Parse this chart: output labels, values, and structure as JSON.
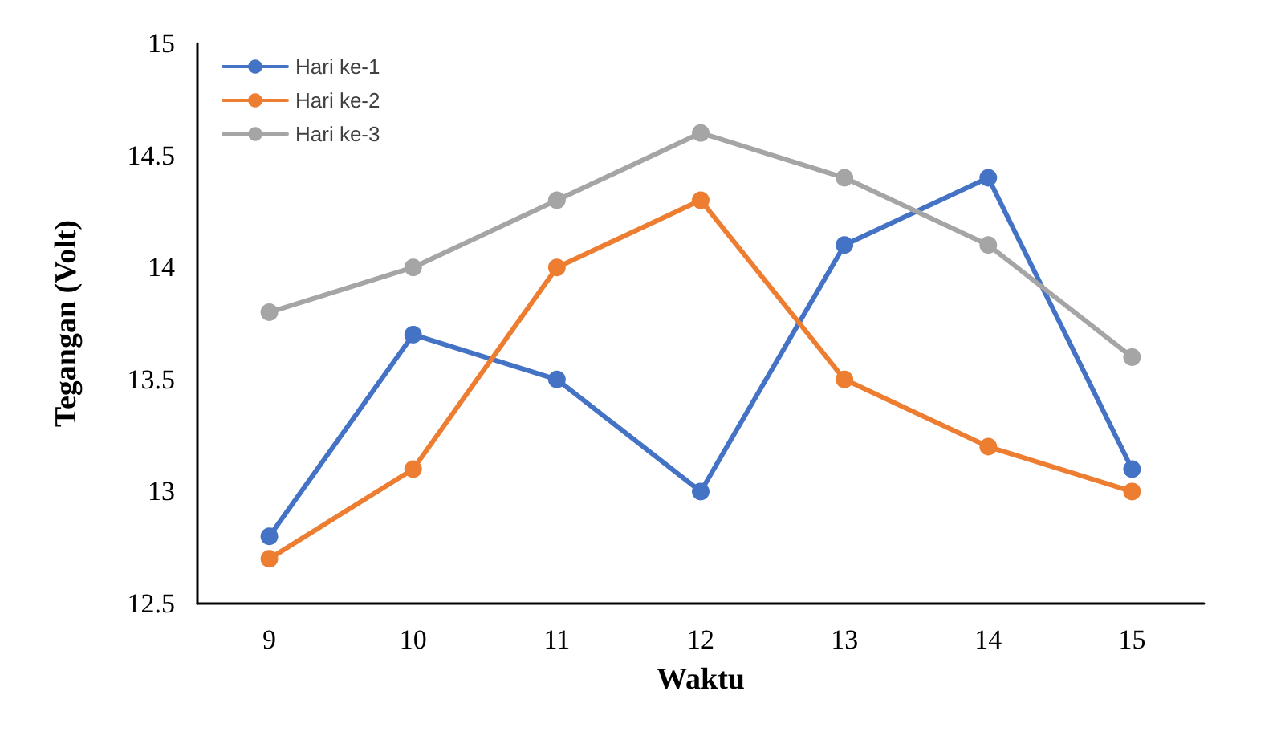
{
  "chart_data": {
    "type": "line",
    "xlabel": "Waktu",
    "ylabel": "Tegangan (Volt)",
    "categories": [
      "9",
      "10",
      "11",
      "12",
      "13",
      "14",
      "15"
    ],
    "series": [
      {
        "name": "Hari ke-1",
        "color": "#4472c4",
        "values": [
          12.8,
          13.7,
          13.5,
          13.0,
          14.1,
          14.4,
          13.1
        ]
      },
      {
        "name": "Hari ke-2",
        "color": "#ed7d31",
        "values": [
          12.7,
          13.1,
          14.0,
          14.3,
          13.5,
          13.2,
          13.0
        ]
      },
      {
        "name": "Hari ke-3",
        "color": "#a5a5a5",
        "values": [
          13.8,
          14.0,
          14.3,
          14.6,
          14.4,
          14.1,
          13.6
        ]
      }
    ],
    "ylim": [
      12.5,
      15
    ],
    "yticks": [
      12.5,
      13,
      13.5,
      14,
      14.5,
      15
    ],
    "grid": false,
    "legend": "top left",
    "marker": "circle",
    "line_style": "solid"
  }
}
